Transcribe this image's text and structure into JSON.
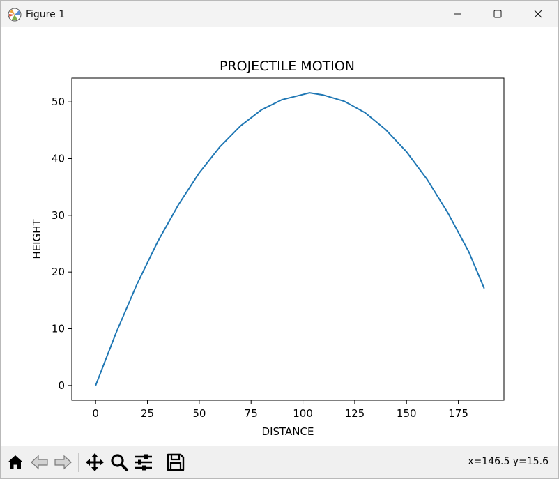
{
  "window": {
    "title": "Figure 1"
  },
  "toolbar": {
    "home_icon": "home-icon",
    "back_icon": "back-arrow-icon",
    "forward_icon": "forward-arrow-icon",
    "pan_icon": "move-icon",
    "zoom_icon": "zoom-icon",
    "configure_icon": "sliders-icon",
    "save_icon": "save-icon",
    "coordinates": "x=146.5 y=15.6"
  },
  "chart_data": {
    "type": "line",
    "title": "PROJECTILE MOTION",
    "xlabel": "DISTANCE",
    "ylabel": "HEIGHT",
    "xlim": [
      -11.5,
      197
    ],
    "ylim": [
      -2.6,
      54.2
    ],
    "xticks": [
      0,
      25,
      50,
      75,
      100,
      125,
      150,
      175
    ],
    "yticks": [
      0,
      10,
      20,
      30,
      40,
      50
    ],
    "grid": false,
    "color": "#1f77b4",
    "series": [
      {
        "x": [
          0,
          10,
          20,
          30,
          40,
          50,
          60,
          70,
          80,
          90,
          100,
          103.2,
          110,
          120,
          130,
          140,
          150,
          160,
          170,
          180,
          187.5
        ],
        "y": [
          0,
          9.4,
          17.9,
          25.4,
          31.9,
          37.5,
          42.1,
          45.8,
          48.6,
          50.4,
          51.3,
          51.6,
          51.2,
          50.1,
          48.1,
          45.1,
          41.2,
          36.3,
          30.4,
          23.6,
          17.1
        ]
      }
    ]
  }
}
